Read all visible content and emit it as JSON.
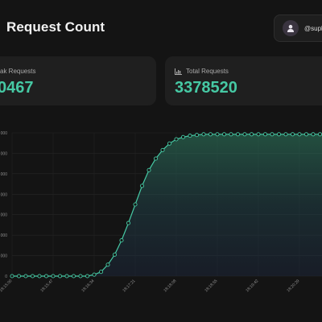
{
  "header": {
    "title": "Request Count",
    "user": {
      "handle": "@suph"
    }
  },
  "cards": {
    "peak": {
      "label": "ak Requests",
      "value": "0467"
    },
    "total": {
      "label": "Total Requests",
      "value": "3378520"
    }
  },
  "colors": {
    "accent": "#46c9a4",
    "background": "#141414",
    "card": "#1f1f1f"
  },
  "icons": {
    "user_avatar": "user-avatar-icon",
    "total_requests": "bar-chart-icon"
  },
  "chart_data": {
    "type": "area",
    "title": "",
    "xlabel": "",
    "ylabel": "",
    "x_tick_labels": [
      "18:15:00",
      "18:15:47",
      "18:16:34",
      "18:17:21",
      "18:18:08",
      "18:18:55",
      "18:19:42",
      "18:20:29",
      "18:21:16",
      "18:22:03",
      "18:22:50",
      "18:23:37"
    ],
    "y_tick_labels": [
      "0",
      "000",
      "000",
      "000",
      "000",
      "000",
      "000",
      "000"
    ],
    "grid": true,
    "legend": "none",
    "series": [
      {
        "values": [
          0,
          0,
          0,
          0,
          0,
          0,
          0,
          0,
          0,
          0,
          0,
          0,
          0.01,
          0.03,
          0.08,
          0.15,
          0.25,
          0.37,
          0.5,
          0.63,
          0.74,
          0.82,
          0.88,
          0.925,
          0.955,
          0.97,
          0.98,
          0.985,
          0.99,
          0.99,
          0.99,
          0.99,
          0.99,
          0.99,
          0.99,
          0.99,
          0.99,
          0.99,
          0.99,
          0.99,
          0.99,
          0.99,
          0.99,
          0.99,
          0.99,
          0.99,
          0.99,
          0.99,
          0.99,
          0.99,
          0.99,
          0.99,
          0.99
        ]
      }
    ]
  }
}
